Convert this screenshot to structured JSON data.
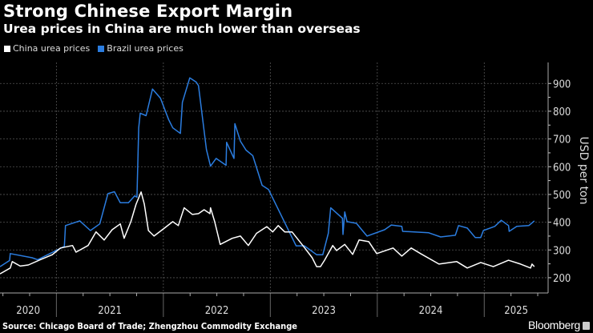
{
  "title": "Strong Chinese Export Margin",
  "subtitle": "Urea prices in China are much lower than overseas",
  "source": "Source: Chicago Board of Trade; Zhengzhou Commodity Exchange",
  "brand": "Bloomberg",
  "chart_data": {
    "type": "line",
    "ylabel": "USD per ton",
    "ylim": [
      145,
      970
    ],
    "xlim": [
      "2020-06-22",
      "2025-08-07"
    ],
    "yticks": [
      200,
      300,
      400,
      500,
      600,
      700,
      800,
      900
    ],
    "xtick_labels": [
      "2020",
      "2021",
      "2022",
      "2023",
      "2024",
      "2025"
    ],
    "grid": true,
    "legend_placement": "top-left",
    "colors": {
      "background": "#000000",
      "china": "#ffffff",
      "brazil": "#2b7de0"
    },
    "series": [
      {
        "name": "China urea prices",
        "color": "#ffffff",
        "points": [
          [
            "2020-06-22",
            214
          ],
          [
            "2020-07-27",
            235
          ],
          [
            "2020-08-03",
            258
          ],
          [
            "2020-08-30",
            242
          ],
          [
            "2020-09-27",
            246
          ],
          [
            "2020-11-07",
            265
          ],
          [
            "2020-12-18",
            283
          ],
          [
            "2021-01-15",
            307
          ],
          [
            "2021-02-25",
            316
          ],
          [
            "2021-03-09",
            292
          ],
          [
            "2021-04-19",
            316
          ],
          [
            "2021-05-16",
            365
          ],
          [
            "2021-06-13",
            336
          ],
          [
            "2021-07-10",
            373
          ],
          [
            "2021-08-07",
            394
          ],
          [
            "2021-08-20",
            342
          ],
          [
            "2021-09-12",
            402
          ],
          [
            "2021-09-30",
            465
          ],
          [
            "2021-10-17",
            509
          ],
          [
            "2021-10-28",
            465
          ],
          [
            "2021-11-11",
            370
          ],
          [
            "2021-11-30",
            350
          ],
          [
            "2022-01-05",
            379
          ],
          [
            "2022-02-02",
            402
          ],
          [
            "2022-02-21",
            388
          ],
          [
            "2022-03-13",
            452
          ],
          [
            "2022-04-10",
            428
          ],
          [
            "2022-05-01",
            431
          ],
          [
            "2022-05-20",
            445
          ],
          [
            "2022-06-09",
            431
          ],
          [
            "2022-06-11",
            452
          ],
          [
            "2022-06-25",
            402
          ],
          [
            "2022-07-14",
            320
          ],
          [
            "2022-08-24",
            342
          ],
          [
            "2022-09-21",
            350
          ],
          [
            "2022-10-18",
            316
          ],
          [
            "2022-11-15",
            360
          ],
          [
            "2022-12-20",
            384
          ],
          [
            "2023-01-09",
            365
          ],
          [
            "2023-01-28",
            388
          ],
          [
            "2023-02-19",
            365
          ],
          [
            "2023-03-16",
            365
          ],
          [
            "2023-04-22",
            316
          ],
          [
            "2023-05-24",
            272
          ],
          [
            "2023-06-08",
            240
          ],
          [
            "2023-06-21",
            240
          ],
          [
            "2023-07-05",
            263
          ],
          [
            "2023-08-02",
            316
          ],
          [
            "2023-08-15",
            298
          ],
          [
            "2023-09-12",
            320
          ],
          [
            "2023-10-09",
            284
          ],
          [
            "2023-10-31",
            336
          ],
          [
            "2023-12-03",
            330
          ],
          [
            "2023-12-30",
            287
          ],
          [
            "2024-02-24",
            307
          ],
          [
            "2024-03-25",
            278
          ],
          [
            "2024-04-26",
            307
          ],
          [
            "2024-05-28",
            287
          ],
          [
            "2024-07-30",
            249
          ],
          [
            "2024-09-29",
            258
          ],
          [
            "2024-11-04",
            235
          ],
          [
            "2024-12-20",
            255
          ],
          [
            "2025-02-01",
            240
          ],
          [
            "2025-03-25",
            263
          ],
          [
            "2025-05-05",
            249
          ],
          [
            "2025-06-08",
            235
          ],
          [
            "2025-06-13",
            249
          ],
          [
            "2025-06-21",
            240
          ]
        ]
      },
      {
        "name": "Brazil urea prices",
        "color": "#2b7de0",
        "points": [
          [
            "2020-06-22",
            240
          ],
          [
            "2020-07-25",
            262
          ],
          [
            "2020-07-27",
            287
          ],
          [
            "2020-10-10",
            272
          ],
          [
            "2020-10-29",
            265
          ],
          [
            "2021-01-28",
            313
          ],
          [
            "2021-02-01",
            388
          ],
          [
            "2021-03-22",
            405
          ],
          [
            "2021-04-27",
            370
          ],
          [
            "2021-05-29",
            394
          ],
          [
            "2021-06-26",
            503
          ],
          [
            "2021-07-18",
            510
          ],
          [
            "2021-08-07",
            470
          ],
          [
            "2021-09-04",
            470
          ],
          [
            "2021-09-25",
            495
          ],
          [
            "2021-10-03",
            490
          ],
          [
            "2021-10-09",
            740
          ],
          [
            "2021-10-14",
            793
          ],
          [
            "2021-11-03",
            784
          ],
          [
            "2021-11-25",
            880
          ],
          [
            "2021-12-22",
            847
          ],
          [
            "2022-01-19",
            770
          ],
          [
            "2022-02-02",
            740
          ],
          [
            "2022-02-28",
            720
          ],
          [
            "2022-03-07",
            832
          ],
          [
            "2022-04-01",
            920
          ],
          [
            "2022-04-23",
            905
          ],
          [
            "2022-05-01",
            892
          ],
          [
            "2022-05-28",
            662
          ],
          [
            "2022-06-11",
            602
          ],
          [
            "2022-06-30",
            630
          ],
          [
            "2022-08-03",
            605
          ],
          [
            "2022-08-05",
            688
          ],
          [
            "2022-08-30",
            630
          ],
          [
            "2022-09-02",
            755
          ],
          [
            "2022-09-21",
            692
          ],
          [
            "2022-10-10",
            660
          ],
          [
            "2022-11-02",
            640
          ],
          [
            "2022-12-04",
            533
          ],
          [
            "2022-12-26",
            518
          ],
          [
            "2023-03-30",
            315
          ],
          [
            "2023-04-27",
            315
          ],
          [
            "2023-06-08",
            283
          ],
          [
            "2023-06-29",
            283
          ],
          [
            "2023-07-18",
            360
          ],
          [
            "2023-07-26",
            452
          ],
          [
            "2023-09-04",
            414
          ],
          [
            "2023-09-06",
            356
          ],
          [
            "2023-09-12",
            437
          ],
          [
            "2023-09-20",
            402
          ],
          [
            "2023-10-22",
            396
          ],
          [
            "2023-11-11",
            370
          ],
          [
            "2023-11-27",
            350
          ],
          [
            "2024-01-26",
            373
          ],
          [
            "2024-02-18",
            390
          ],
          [
            "2024-03-25",
            385
          ],
          [
            "2024-03-28",
            367
          ],
          [
            "2024-06-25",
            362
          ],
          [
            "2024-08-05",
            347
          ],
          [
            "2024-09-24",
            353
          ],
          [
            "2024-10-05",
            388
          ],
          [
            "2024-11-04",
            379
          ],
          [
            "2024-12-01",
            345
          ],
          [
            "2024-12-20",
            345
          ],
          [
            "2024-12-29",
            370
          ],
          [
            "2025-02-06",
            385
          ],
          [
            "2025-02-28",
            407
          ],
          [
            "2025-03-25",
            388
          ],
          [
            "2025-03-27",
            367
          ],
          [
            "2025-04-22",
            385
          ],
          [
            "2025-06-02",
            388
          ],
          [
            "2025-06-21",
            405
          ]
        ]
      }
    ]
  }
}
